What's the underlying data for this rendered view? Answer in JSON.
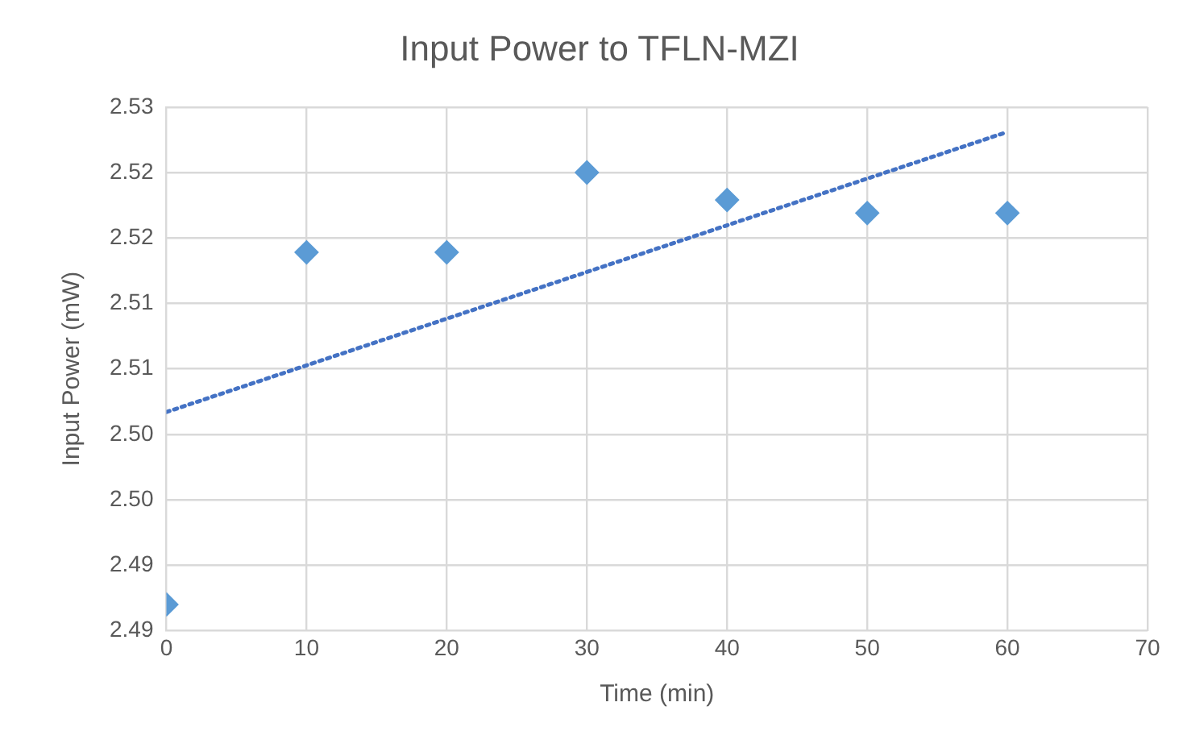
{
  "chart_data": {
    "type": "scatter",
    "title": "Input Power to TFLN-MZI",
    "xlabel": "Time (min)",
    "ylabel": "Input Power (mW)",
    "x": [
      0,
      10,
      20,
      30,
      40,
      50,
      60
    ],
    "series": [
      {
        "color": "#5b9bd5",
        "marker": "diamond",
        "values": [
          2.492,
          2.5189,
          2.5189,
          2.525,
          2.5229,
          2.5219,
          2.5219
        ]
      },
      {
        "type": "line",
        "color": "#4472c4",
        "marker": "none",
        "line_style": "dotted",
        "x": [
          0,
          60
        ],
        "values": [
          2.5067,
          2.5281
        ]
      }
    ],
    "xlim": [
      0,
      70
    ],
    "xticks": [
      0,
      10,
      20,
      30,
      40,
      50,
      60,
      70
    ],
    "ylim": [
      2.49,
      2.53
    ],
    "yticks": [
      {
        "value": 2.49,
        "label": "2.49"
      },
      {
        "value": 2.495,
        "label": "2.49"
      },
      {
        "value": 2.5,
        "label": "2.50"
      },
      {
        "value": 2.505,
        "label": "2.50"
      },
      {
        "value": 2.51,
        "label": "2.51"
      },
      {
        "value": 2.515,
        "label": "2.51"
      },
      {
        "value": 2.52,
        "label": "2.52"
      },
      {
        "value": 2.525,
        "label": "2.52"
      },
      {
        "value": 2.53,
        "label": "2.53"
      }
    ],
    "grid": true,
    "legend": false
  }
}
